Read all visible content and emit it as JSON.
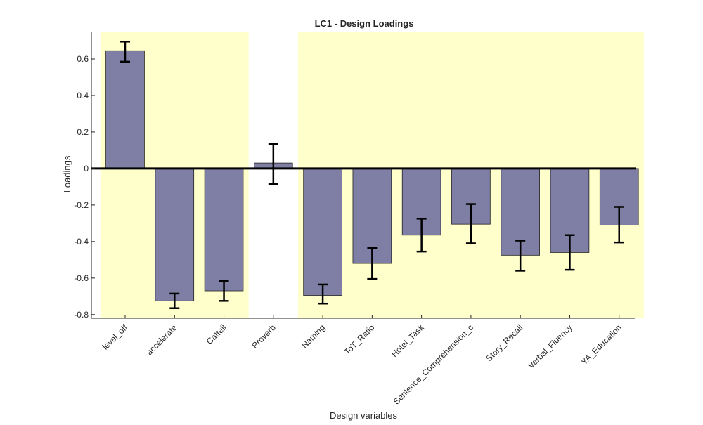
{
  "chart_data": {
    "type": "bar",
    "title": "LC1 - Design Loadings",
    "xlabel": "Design variables",
    "ylabel": "Loadings",
    "ylim": [
      -0.82,
      0.75
    ],
    "yticks": [
      -0.8,
      -0.6,
      -0.4,
      -0.2,
      0,
      0.2,
      0.4,
      0.6
    ],
    "ytick_labels": [
      "-0.8",
      "-0.6",
      "-0.4",
      "-0.2",
      "0",
      "0.2",
      "0.4",
      "0.6"
    ],
    "categories": [
      "level_off",
      "accelerate",
      "Cattell",
      "Proverb",
      "Naming",
      "ToT_Ratio",
      "Hotel_Task",
      "Sentence_Comprehension_c",
      "Story_Recall",
      "Verbal_Fluency",
      "YA_Education"
    ],
    "values": [
      0.645,
      -0.725,
      -0.67,
      0.03,
      -0.695,
      -0.52,
      -0.365,
      -0.305,
      -0.475,
      -0.46,
      -0.31
    ],
    "error_low": [
      0.585,
      -0.765,
      -0.725,
      -0.085,
      -0.74,
      -0.605,
      -0.455,
      -0.41,
      -0.56,
      -0.555,
      -0.405
    ],
    "error_high": [
      0.695,
      -0.685,
      -0.615,
      0.135,
      -0.635,
      -0.435,
      -0.275,
      -0.195,
      -0.395,
      -0.365,
      -0.21
    ],
    "highlight_groups": [
      [
        0,
        2
      ],
      [
        4,
        10
      ]
    ],
    "grid": false,
    "colors": {
      "bar": "#7f7fa6",
      "bar_edge": "#222222",
      "highlight": "#ffffcc",
      "error_bar": "#000000",
      "axis": "#262626"
    }
  }
}
